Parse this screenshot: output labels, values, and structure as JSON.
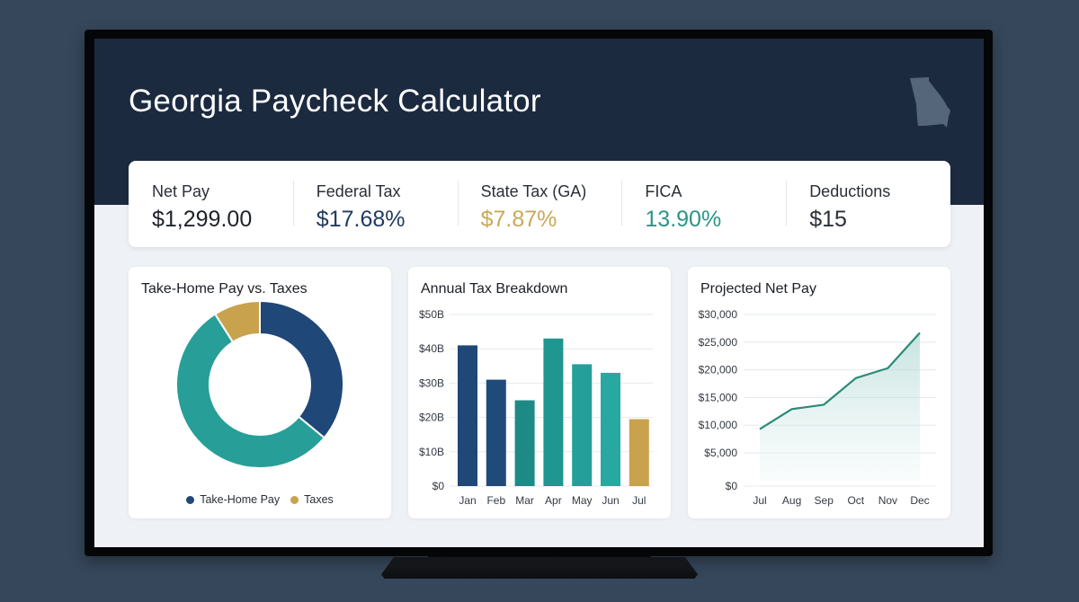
{
  "header": {
    "title": "Georgia Paycheck Calculator",
    "icon": "georgia-state-icon"
  },
  "stats": [
    {
      "label": "Net Pay",
      "value": "$1,299.00",
      "color": "#1f2329"
    },
    {
      "label": "Federal Tax",
      "value": "$17.68%",
      "color": "#1f3a5f"
    },
    {
      "label": "State Tax (GA)",
      "value": "$7.87%",
      "color": "#c9a85a"
    },
    {
      "label": "FICA",
      "value": "13.90%",
      "color": "#2a9588"
    },
    {
      "label": "Deductions",
      "value": "$15",
      "color": "#2b3038"
    }
  ],
  "colors": {
    "navy": "#1f4778",
    "teal": "#279f98",
    "gold": "#c9a24e",
    "header_bg": "#1c2a40",
    "line": "#2b8a78"
  },
  "charts": {
    "donut": {
      "title": "Take-Home Pay vs. Taxes",
      "legend": [
        "Take-Home Pay",
        "Taxes"
      ]
    },
    "bar": {
      "title": "Annual Tax Breakdown"
    },
    "line": {
      "title": "Projected Net Pay"
    }
  },
  "chart_data": [
    {
      "type": "pie",
      "title": "Take-Home Pay vs. Taxes",
      "categories": [
        "Take-Home Pay (navy)",
        "Teal segment",
        "Taxes"
      ],
      "values": [
        36,
        55,
        9
      ],
      "legend": [
        "Take-Home Pay",
        "Taxes"
      ],
      "legend_position": "bottom",
      "donut": true
    },
    {
      "type": "bar",
      "title": "Annual Tax Breakdown",
      "categories": [
        "Jan",
        "Feb",
        "Mar",
        "Apr",
        "May",
        "Jun",
        "Jul"
      ],
      "values": [
        41,
        31,
        25,
        43,
        35.5,
        33,
        19.5
      ],
      "yticks": [
        "$0",
        "$10B",
        "$20B",
        "$30B",
        "$40B",
        "$50B"
      ],
      "xlabel": "",
      "ylabel": "",
      "ylim": [
        0,
        50
      ],
      "unit": "$B",
      "grid": true
    },
    {
      "type": "area",
      "title": "Projected Net Pay",
      "categories": [
        "Jul",
        "Aug",
        "Sep",
        "Oct",
        "Nov",
        "Dec"
      ],
      "values": [
        9300,
        12900,
        13700,
        18500,
        20300,
        26700
      ],
      "yticks": [
        "$0",
        "$5,000",
        "$10,000",
        "$15,000",
        "$20,000",
        "$25,000",
        "$30,000"
      ],
      "xlabel": "",
      "ylabel": "",
      "ylim": [
        0,
        30000
      ],
      "grid": true
    }
  ]
}
